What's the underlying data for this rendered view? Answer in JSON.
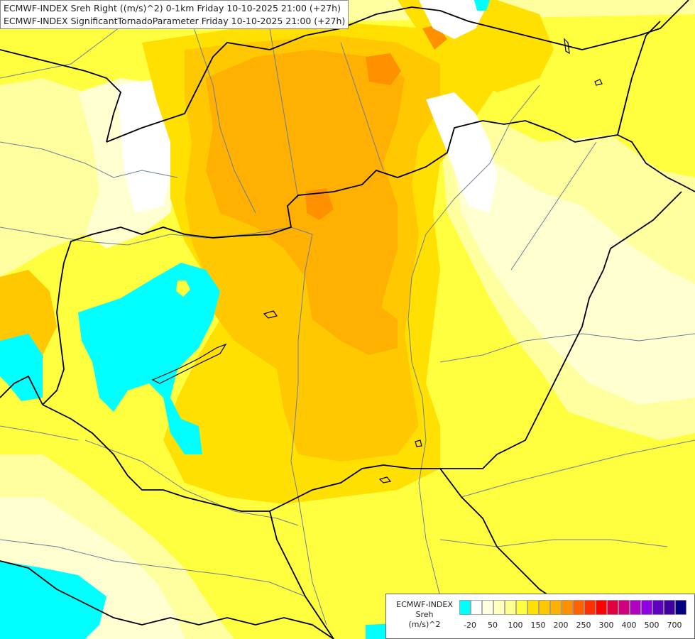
{
  "title": {
    "line1": "ECMWF-INDEX Sreh Right ((m/s)^2) 0-1km Friday 10-10-2025 21:00 (+27h)",
    "line2": "ECMWF-INDEX SignificantTornadoParameter Friday 10-10-2025 21:00 (+27h)"
  },
  "legend": {
    "title_lines": [
      "ECMWF-INDEX",
      "Sreh",
      "(m/s)^2"
    ],
    "colors": [
      "#00ffff",
      "#ffffff",
      "#ffffe0",
      "#ffffc0",
      "#ffff90",
      "#ffff40",
      "#ffe000",
      "#ffc800",
      "#ffb000",
      "#ff9000",
      "#ff6000",
      "#ff3000",
      "#ff0000",
      "#e00040",
      "#d00080",
      "#b000c0",
      "#9000e0",
      "#6000c0",
      "#4000a0",
      "#000080"
    ],
    "labels": [
      "-20",
      "50",
      "100",
      "150",
      "200",
      "250",
      "300",
      "400",
      "500",
      "700"
    ]
  },
  "field_colors": {
    "background": "#ffffa0",
    "yellow": "#ffff40",
    "gold": "#ffe000",
    "amber": "#ffc800",
    "orange": "#ffb000",
    "deep_orange": "#ff9000",
    "pale": "#ffffd0",
    "white": "#ffffff",
    "cyan": "#00ffff"
  },
  "line_colors": {
    "borders": "#000000",
    "rivers": "#6a7f9a"
  }
}
